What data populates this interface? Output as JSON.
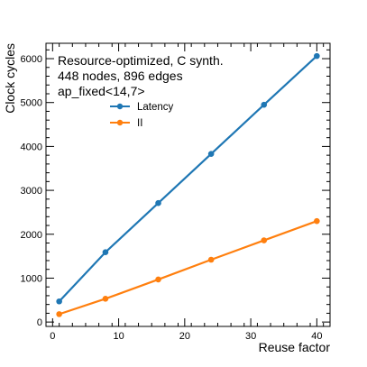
{
  "chart_data": {
    "type": "line",
    "xlabel": "Reuse factor",
    "ylabel": "Clock cycles",
    "xlim": [
      -1,
      42
    ],
    "ylim": [
      -100,
      6350
    ],
    "x_ticks": [
      0,
      10,
      20,
      30,
      40
    ],
    "y_ticks": [
      0,
      1000,
      2000,
      3000,
      4000,
      5000,
      6000
    ],
    "x_tick_labels": [
      "0",
      "10",
      "20",
      "30",
      "40"
    ],
    "y_tick_labels": [
      "0",
      "1000",
      "2000",
      "3000",
      "4000",
      "5000",
      "6000"
    ],
    "grid": false,
    "annotation": [
      "Resource-optimized, C synth.",
      "448 nodes, 896 edges",
      "ap_fixed<14,7>"
    ],
    "legend_position": "upper-left",
    "series": [
      {
        "name": "Latency",
        "color": "#1f77b4",
        "x": [
          1,
          8,
          16,
          24,
          32,
          40
        ],
        "y": [
          470,
          1590,
          2710,
          3830,
          4950,
          6060
        ]
      },
      {
        "name": "II",
        "color": "#ff7f0e",
        "x": [
          1,
          8,
          16,
          24,
          32,
          40
        ],
        "y": [
          180,
          530,
          970,
          1420,
          1860,
          2300
        ]
      }
    ]
  }
}
